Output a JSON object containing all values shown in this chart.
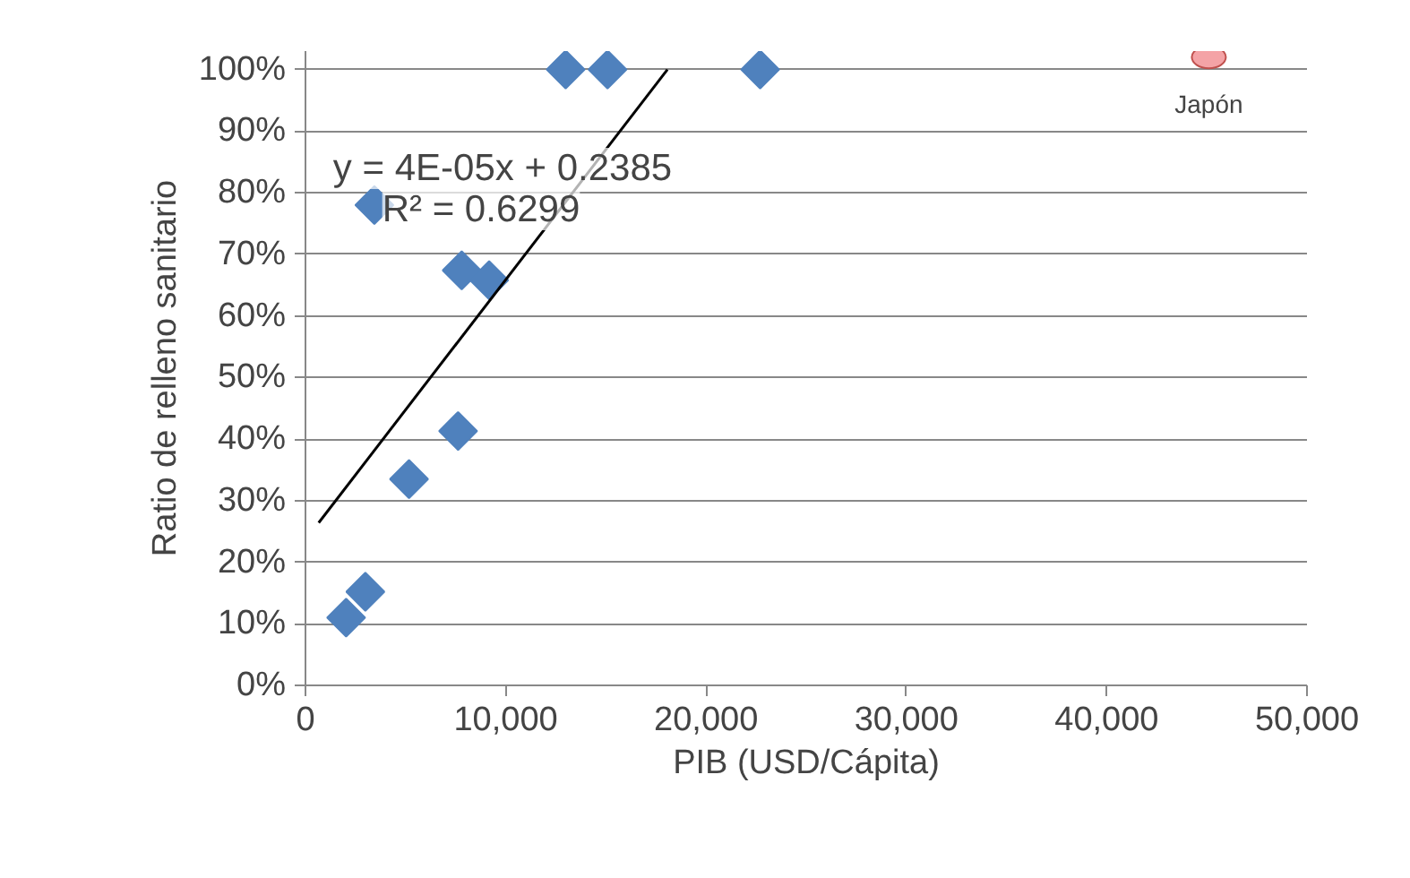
{
  "chart_data": {
    "type": "scatter",
    "xlabel": "PIB (USD/Cápita)",
    "ylabel": "Ratio de relleno sanitario",
    "xlim": [
      0,
      50000
    ],
    "xticks": [
      {
        "value": 0,
        "label": "0"
      },
      {
        "value": 10000,
        "label": "10,000"
      },
      {
        "value": 20000,
        "label": "20,000"
      },
      {
        "value": 30000,
        "label": "30,000"
      },
      {
        "value": 40000,
        "label": "40,000"
      },
      {
        "value": 50000,
        "label": "50,000"
      }
    ],
    "ylim": [
      0,
      103
    ],
    "yticks": [
      {
        "value": 0,
        "label": "0%"
      },
      {
        "value": 10,
        "label": "10%"
      },
      {
        "value": 20,
        "label": "20%"
      },
      {
        "value": 30,
        "label": "30%"
      },
      {
        "value": 40,
        "label": "40%"
      },
      {
        "value": 50,
        "label": "50%"
      },
      {
        "value": 60,
        "label": "60%"
      },
      {
        "value": 70,
        "label": "70%"
      },
      {
        "value": 80,
        "label": "80%"
      },
      {
        "value": 90,
        "label": "90%"
      },
      {
        "value": 100,
        "label": "100%"
      }
    ],
    "grid": "y",
    "series": [
      {
        "marker": "diamond",
        "color": "#4f81bd",
        "x": [
          2030,
          2990,
          5170,
          7620,
          7800,
          9170,
          3440,
          12990,
          15080,
          22700
        ],
        "values": [
          11,
          15.2,
          33.5,
          41.3,
          67.4,
          65.8,
          78,
          100,
          100,
          100
        ]
      },
      {
        "marker": "circle",
        "color": "#f4a3a6",
        "x": [
          45100
        ],
        "values": [
          102
        ]
      },
      {
        "type": "line",
        "color": "#000000",
        "x": [
          660,
          18070
        ],
        "values": [
          26.4,
          100
        ]
      }
    ],
    "annotations": [
      "y = 4E-05x + 0.2385",
      "R² = 0.6299",
      {
        "text": "Japón",
        "x": 45100,
        "y": 102
      }
    ]
  }
}
